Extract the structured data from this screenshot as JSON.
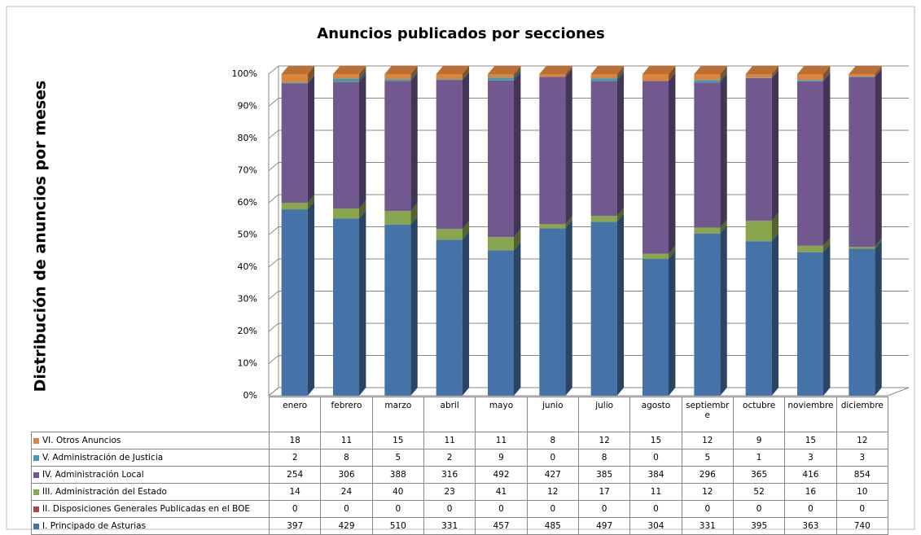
{
  "chart_data": {
    "type": "stacked_bar_100_3d",
    "title": "Anuncios publicados por secciones",
    "y_label": "Distribución de anuncios por meses",
    "categories": [
      "enero",
      "febrero",
      "marzo",
      "abril",
      "mayo",
      "junio",
      "julio",
      "agosto",
      "septiembre",
      "octubre",
      "noviembre",
      "diciembre"
    ],
    "series": [
      {
        "name": "I. Principado de Asturias",
        "color": "#4572a7",
        "values": [
          397,
          429,
          510,
          331,
          457,
          485,
          497,
          304,
          331,
          395,
          363,
          740
        ]
      },
      {
        "name": "II. Disposiciones Generales Publicadas en el BOE",
        "color": "#aa4643",
        "values": [
          0,
          0,
          0,
          0,
          0,
          0,
          0,
          0,
          0,
          0,
          0,
          0
        ]
      },
      {
        "name": "III. Administración del Estado",
        "color": "#89a54e",
        "values": [
          14,
          24,
          40,
          23,
          41,
          12,
          17,
          11,
          12,
          52,
          16,
          10
        ]
      },
      {
        "name": "IV. Administración Local",
        "color": "#71588f",
        "values": [
          254,
          306,
          388,
          316,
          492,
          427,
          385,
          384,
          296,
          365,
          416,
          854
        ]
      },
      {
        "name": "V. Administración de Justicia",
        "color": "#4198af",
        "values": [
          2,
          8,
          5,
          2,
          9,
          0,
          8,
          0,
          5,
          1,
          3,
          3
        ]
      },
      {
        "name": "VI. Otros Anuncios",
        "color": "#db843d",
        "values": [
          18,
          11,
          15,
          11,
          11,
          8,
          12,
          15,
          12,
          9,
          15,
          12
        ]
      }
    ],
    "ylim": [
      0,
      100
    ],
    "yticks": [
      {
        "value": 0,
        "label": "0%"
      },
      {
        "value": 10,
        "label": "10%"
      },
      {
        "value": 20,
        "label": "20%"
      },
      {
        "value": 30,
        "label": "30%"
      },
      {
        "value": 40,
        "label": "40%"
      },
      {
        "value": 50,
        "label": "50%"
      },
      {
        "value": 60,
        "label": "60%"
      },
      {
        "value": 70,
        "label": "70%"
      },
      {
        "value": 80,
        "label": "80%"
      },
      {
        "value": 90,
        "label": "90%"
      },
      {
        "value": 100,
        "label": "100%"
      }
    ],
    "grid": true
  }
}
